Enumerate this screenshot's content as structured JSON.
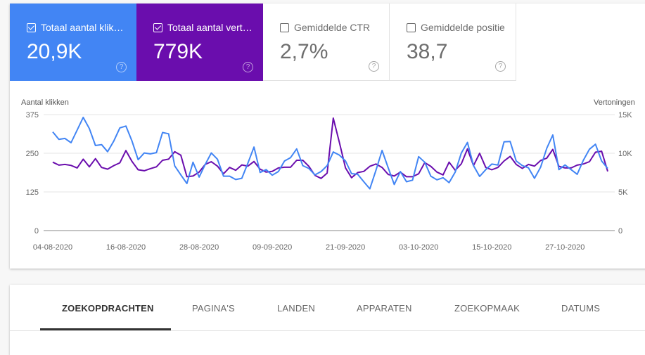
{
  "metrics": [
    {
      "label": "Totaal aantal klik…",
      "value": "20,9K",
      "checked": true,
      "color": "#4285f4"
    },
    {
      "label": "Totaal aantal vert…",
      "value": "779K",
      "checked": true,
      "color": "#6a0dad"
    },
    {
      "label": "Gemiddelde CTR",
      "value": "2,7%",
      "checked": false
    },
    {
      "label": "Gemiddelde positie",
      "value": "38,7",
      "checked": false
    }
  ],
  "help_icon": "?",
  "chart_data": {
    "type": "line",
    "ylabel_left": "Aantal klikken",
    "ylabel_right": "Vertoningen",
    "ylim_left": [
      0,
      375
    ],
    "ylim_right": [
      0,
      15000
    ],
    "yticks_left": [
      "0",
      "125",
      "250",
      "375"
    ],
    "yticks_right": [
      "0",
      "5K",
      "10K",
      "15K"
    ],
    "xtick_labels": [
      "04-08-2020",
      "16-08-2020",
      "28-08-2020",
      "09-09-2020",
      "21-09-2020",
      "03-10-2020",
      "15-10-2020",
      "27-10-2020"
    ],
    "grid": true,
    "x": [
      "04-08-2020",
      "05-08-2020",
      "06-08-2020",
      "07-08-2020",
      "08-08-2020",
      "09-08-2020",
      "10-08-2020",
      "11-08-2020",
      "12-08-2020",
      "13-08-2020",
      "14-08-2020",
      "15-08-2020",
      "16-08-2020",
      "17-08-2020",
      "18-08-2020",
      "19-08-2020",
      "20-08-2020",
      "21-08-2020",
      "22-08-2020",
      "23-08-2020",
      "24-08-2020",
      "25-08-2020",
      "26-08-2020",
      "27-08-2020",
      "28-08-2020",
      "29-08-2020",
      "30-08-2020",
      "31-08-2020",
      "01-09-2020",
      "02-09-2020",
      "03-09-2020",
      "04-09-2020",
      "05-09-2020",
      "06-09-2020",
      "07-09-2020",
      "08-09-2020",
      "09-09-2020",
      "10-09-2020",
      "11-09-2020",
      "12-09-2020",
      "13-09-2020",
      "14-09-2020",
      "15-09-2020",
      "16-09-2020",
      "17-09-2020",
      "18-09-2020",
      "19-09-2020",
      "20-09-2020",
      "21-09-2020",
      "22-09-2020",
      "23-09-2020",
      "24-09-2020",
      "25-09-2020",
      "26-09-2020",
      "27-09-2020",
      "28-09-2020",
      "29-09-2020",
      "30-09-2020",
      "01-10-2020",
      "02-10-2020",
      "03-10-2020",
      "04-10-2020",
      "05-10-2020",
      "06-10-2020",
      "07-10-2020",
      "08-10-2020",
      "09-10-2020",
      "10-10-2020",
      "11-10-2020",
      "12-10-2020",
      "13-10-2020",
      "14-10-2020",
      "15-10-2020",
      "16-10-2020",
      "17-10-2020",
      "18-10-2020",
      "19-10-2020",
      "20-10-2020",
      "21-10-2020",
      "22-10-2020",
      "23-10-2020",
      "24-10-2020",
      "25-10-2020",
      "26-10-2020",
      "27-10-2020",
      "28-10-2020",
      "29-10-2020",
      "30-10-2020",
      "31-10-2020",
      "01-11-2020",
      "02-11-2020",
      "03-11-2020"
    ],
    "series": [
      {
        "axis": "left",
        "color": "#4285f4",
        "values": [
          319,
          295,
          298,
          284,
          325,
          366,
          330,
          275,
          278,
          255,
          289,
          332,
          338,
          289,
          229,
          251,
          248,
          252,
          317,
          313,
          209,
          180,
          152,
          221,
          173,
          214,
          251,
          231,
          176,
          176,
          165,
          169,
          218,
          270,
          188,
          197,
          179,
          191,
          225,
          236,
          264,
          210,
          201,
          180,
          191,
          210,
          254,
          244,
          225,
          184,
          182,
          158,
          135,
          195,
          259,
          203,
          149,
          191,
          158,
          163,
          239,
          221,
          176,
          164,
          171,
          155,
          189,
          251,
          285,
          210,
          175,
          197,
          215,
          212,
          287,
          288,
          225,
          210,
          203,
          169,
          205,
          266,
          309,
          197,
          212,
          197,
          182,
          227,
          263,
          279,
          225,
          201
        ]
      },
      {
        "axis": "right",
        "color": "#6a0dad",
        "values": [
          8850,
          8460,
          8550,
          8430,
          8100,
          9240,
          8250,
          9300,
          8160,
          7950,
          8400,
          8760,
          10350,
          8940,
          7860,
          7740,
          8010,
          8250,
          9090,
          9240,
          10200,
          9750,
          6960,
          7050,
          7560,
          8550,
          8910,
          8340,
          7350,
          8160,
          7800,
          8490,
          8340,
          8940,
          7950,
          7560,
          7650,
          8100,
          8190,
          8190,
          9090,
          9090,
          8310,
          7140,
          6750,
          7440,
          14550,
          11400,
          8100,
          6840,
          7500,
          7650,
          8310,
          8610,
          8160,
          7260,
          7050,
          7560,
          6960,
          6960,
          7350,
          8790,
          8310,
          7560,
          7200,
          8850,
          7800,
          8640,
          10560,
          8400,
          9990,
          8160,
          7860,
          8160,
          9000,
          9600,
          8550,
          8040,
          8550,
          8340,
          9060,
          9360,
          10500,
          8310,
          8100,
          8100,
          8460,
          8610,
          8910,
          10140,
          10260,
          7650
        ]
      }
    ]
  },
  "tabs": [
    {
      "label": "ZOEKOPDRACHTEN",
      "active": true
    },
    {
      "label": "PAGINA'S"
    },
    {
      "label": "LANDEN"
    },
    {
      "label": "APPARATEN"
    },
    {
      "label": "ZOEKOPMAAK"
    },
    {
      "label": "DATUMS"
    }
  ]
}
